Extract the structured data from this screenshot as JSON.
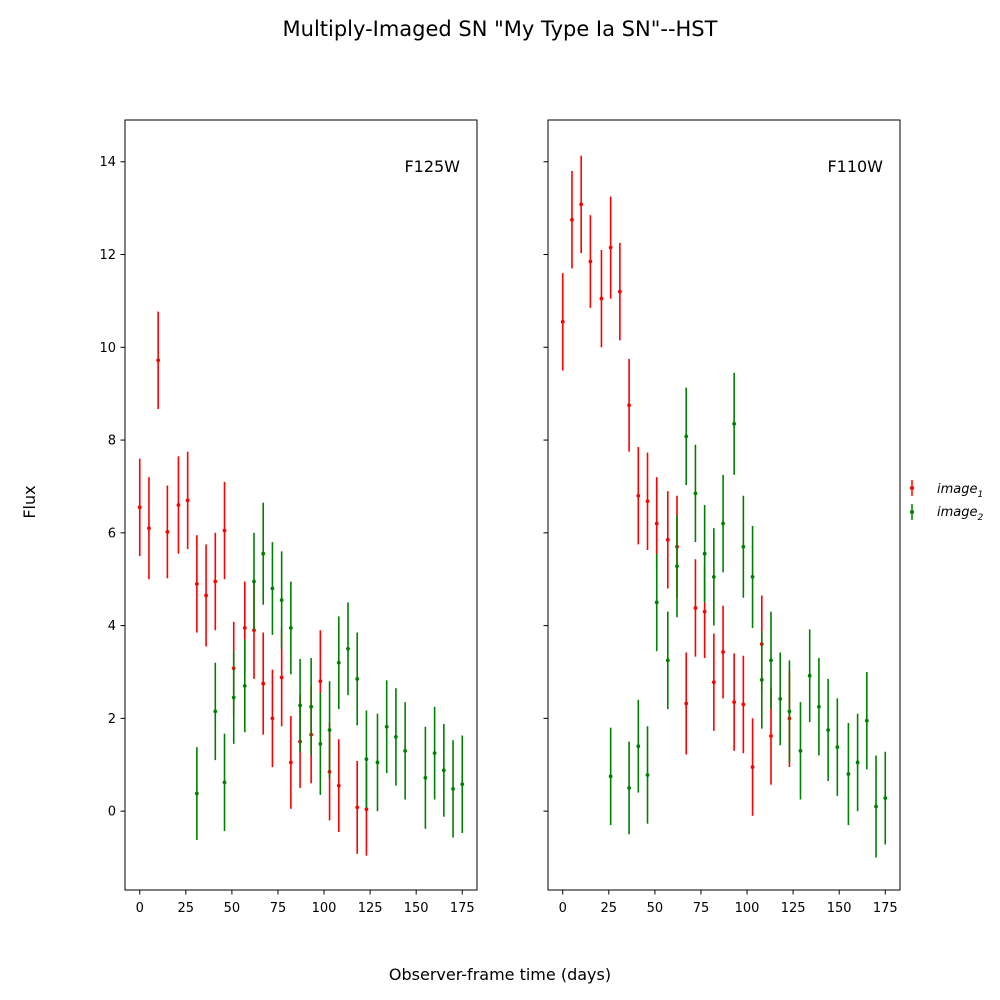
{
  "figure": {
    "title": "Multiply-Imaged SN \"My Type Ia SN\"--HST",
    "xlabel": "Observer-frame time (days)",
    "ylabel": "Flux"
  },
  "legend": {
    "placement": "right",
    "entries": [
      {
        "label_base": "image",
        "label_sub": "1",
        "color": "#ff0000"
      },
      {
        "label_base": "image",
        "label_sub": "2",
        "color": "#008000"
      }
    ]
  },
  "chart_data": [
    {
      "type": "scatter",
      "panel": "left",
      "band": "F125W",
      "xlim": [
        -8,
        183
      ],
      "ylim": [
        -1.7,
        14.9
      ],
      "xticks": [
        0,
        25,
        50,
        75,
        100,
        125,
        150,
        175
      ],
      "yticks": [
        0,
        2,
        4,
        6,
        8,
        10,
        12,
        14
      ],
      "show_ytick_labels": true,
      "grid": false,
      "series": [
        {
          "name": "image1",
          "color": "#ff0000",
          "x": [
            0,
            5,
            10,
            15,
            21,
            26,
            31,
            36,
            41,
            46,
            51,
            57,
            62,
            67,
            72,
            77,
            82,
            87,
            93,
            98,
            103,
            108,
            118,
            123
          ],
          "y": [
            6.55,
            6.1,
            9.72,
            6.02,
            6.6,
            6.7,
            4.9,
            4.65,
            4.95,
            6.05,
            3.08,
            3.95,
            3.9,
            2.75,
            2.0,
            2.88,
            1.05,
            1.5,
            1.65,
            2.8,
            0.85,
            0.55,
            0.08,
            0.04
          ],
          "err": [
            1.05,
            1.1,
            1.05,
            1.0,
            1.05,
            1.05,
            1.05,
            1.1,
            1.05,
            1.05,
            1.0,
            1.0,
            1.05,
            1.1,
            1.05,
            1.05,
            1.0,
            1.0,
            1.05,
            1.1,
            1.05,
            1.0,
            1.0,
            1.0
          ]
        },
        {
          "name": "image2",
          "color": "#008000",
          "x": [
            31,
            41,
            46,
            51,
            57,
            62,
            67,
            72,
            77,
            82,
            87,
            93,
            98,
            103,
            108,
            113,
            118,
            123,
            129,
            134,
            139,
            144,
            155,
            160,
            165,
            170,
            175
          ],
          "y": [
            0.38,
            2.15,
            0.62,
            2.45,
            2.7,
            4.95,
            5.55,
            4.8,
            4.55,
            3.95,
            2.28,
            2.25,
            1.45,
            1.75,
            3.2,
            3.5,
            2.85,
            1.12,
            1.05,
            1.82,
            1.6,
            1.3,
            0.72,
            1.25,
            0.88,
            0.48,
            0.58
          ],
          "err": [
            1.0,
            1.05,
            1.05,
            1.0,
            1.0,
            1.05,
            1.1,
            1.0,
            1.05,
            1.0,
            1.0,
            1.05,
            1.1,
            1.05,
            1.0,
            1.0,
            1.0,
            1.05,
            1.05,
            1.0,
            1.05,
            1.05,
            1.1,
            1.0,
            1.0,
            1.05,
            1.05
          ]
        }
      ]
    },
    {
      "type": "scatter",
      "panel": "right",
      "band": "F110W",
      "xlim": [
        -8,
        183
      ],
      "ylim": [
        -1.7,
        14.9
      ],
      "xticks": [
        0,
        25,
        50,
        75,
        100,
        125,
        150,
        175
      ],
      "yticks": [
        0,
        2,
        4,
        6,
        8,
        10,
        12,
        14
      ],
      "show_ytick_labels": false,
      "grid": false,
      "series": [
        {
          "name": "image1",
          "color": "#ff0000",
          "x": [
            0,
            5,
            10,
            15,
            21,
            26,
            31,
            36,
            41,
            46,
            51,
            57,
            62,
            67,
            72,
            77,
            82,
            87,
            93,
            98,
            103,
            108,
            113,
            123
          ],
          "y": [
            10.55,
            12.75,
            13.08,
            11.85,
            11.05,
            12.15,
            11.2,
            8.75,
            6.8,
            6.68,
            6.2,
            5.85,
            5.7,
            2.32,
            4.38,
            4.3,
            2.78,
            3.43,
            2.35,
            2.3,
            0.95,
            3.6,
            1.62,
            2.0
          ],
          "err": [
            1.05,
            1.05,
            1.05,
            1.0,
            1.05,
            1.1,
            1.05,
            1.0,
            1.05,
            1.05,
            1.0,
            1.05,
            1.1,
            1.1,
            1.05,
            1.0,
            1.05,
            1.0,
            1.05,
            1.05,
            1.05,
            1.05,
            1.05,
            1.05
          ]
        },
        {
          "name": "image2",
          "color": "#008000",
          "x": [
            26,
            36,
            41,
            46,
            51,
            57,
            62,
            67,
            72,
            77,
            82,
            87,
            93,
            98,
            103,
            108,
            113,
            118,
            123,
            129,
            134,
            139,
            144,
            149,
            155,
            160,
            165,
            170,
            175
          ],
          "y": [
            0.75,
            0.5,
            1.4,
            0.78,
            4.5,
            3.25,
            5.28,
            8.08,
            6.85,
            5.55,
            5.05,
            6.2,
            8.35,
            5.7,
            5.05,
            2.83,
            3.25,
            2.42,
            2.15,
            1.3,
            2.92,
            2.25,
            1.75,
            1.38,
            0.8,
            1.05,
            1.95,
            0.1,
            0.28
          ],
          "err": [
            1.05,
            1.0,
            1.0,
            1.05,
            1.05,
            1.05,
            1.1,
            1.05,
            1.05,
            1.05,
            1.05,
            1.05,
            1.1,
            1.1,
            1.1,
            1.05,
            1.05,
            1.0,
            1.1,
            1.05,
            1.0,
            1.05,
            1.1,
            1.05,
            1.1,
            1.05,
            1.05,
            1.1,
            1.0
          ]
        }
      ]
    }
  ]
}
